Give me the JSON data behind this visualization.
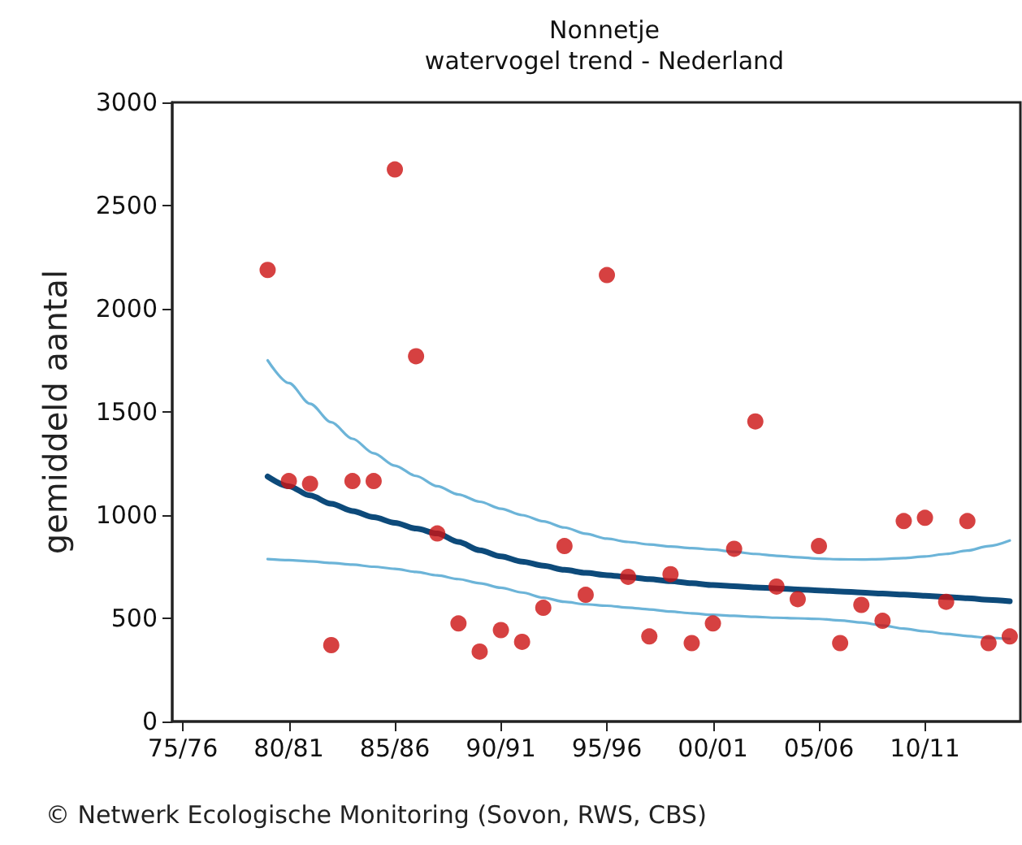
{
  "chart_data": {
    "type": "scatter",
    "title": "Nonnetje",
    "subtitle": "watervogel trend - Nederland",
    "ylabel": "gemiddeld aantal",
    "annotations": [
      "© Netwerk Ecologische Monitoring (Sovon, RWS, CBS)"
    ],
    "categories": [
      "75/76",
      null,
      null,
      null,
      null,
      "80/81",
      null,
      null,
      null,
      null,
      "85/86",
      null,
      null,
      null,
      null,
      "90/91",
      null,
      null,
      null,
      null,
      "95/96",
      null,
      null,
      null,
      null,
      "00/01",
      null,
      null,
      null,
      null,
      "05/06",
      null,
      null,
      null,
      null,
      "10/11",
      null,
      null,
      null,
      null
    ],
    "ylim": [
      0,
      3000
    ],
    "yticks": [
      0,
      500,
      1000,
      1500,
      2000,
      2500,
      3000
    ],
    "series": [
      {
        "type": "line",
        "color": "#6cb4d8",
        "values": [
          null,
          null,
          null,
          null,
          1750,
          1640,
          1540,
          1450,
          1370,
          1300,
          1240,
          1190,
          1140,
          1100,
          1065,
          1031,
          1000,
          970,
          940,
          910,
          886,
          870,
          858,
          848,
          840,
          833,
          822,
          812,
          803,
          796,
          789,
          786,
          785,
          787,
          792,
          800,
          812,
          828,
          850,
          877
        ]
      },
      {
        "type": "line",
        "color": "#6cb4d8",
        "values": [
          null,
          null,
          null,
          null,
          787,
          782,
          776,
          768,
          760,
          750,
          740,
          725,
          708,
          690,
          670,
          648,
          625,
          600,
          580,
          568,
          561,
          552,
          543,
          533,
          524,
          517,
          512,
          507,
          503,
          500,
          497,
          490,
          480,
          465,
          450,
          437,
          425,
          414,
          405,
          400
        ]
      },
      {
        "type": "line",
        "color": "#0d4a7a",
        "values": [
          null,
          null,
          null,
          null,
          1187,
          1140,
          1095,
          1055,
          1020,
          990,
          963,
          935,
          911,
          870,
          830,
          800,
          775,
          755,
          735,
          720,
          709,
          700,
          690,
          680,
          670,
          661,
          656,
          650,
          645,
          640,
          635,
          630,
          625,
          620,
          615,
          609,
          603,
          597,
          590,
          583
        ]
      },
      {
        "color": "#cc1111",
        "values": [
          null,
          null,
          null,
          null,
          2188,
          1165,
          1152,
          370,
          1165,
          1165,
          2675,
          1770,
          911,
          475,
          339,
          443,
          386,
          551,
          850,
          614,
          2163,
          701,
          412,
          714,
          380,
          475,
          837,
          1454,
          654,
          593,
          850,
          380,
          565,
          488,
          971,
          987,
          580,
          971,
          380,
          412
        ]
      }
    ]
  }
}
